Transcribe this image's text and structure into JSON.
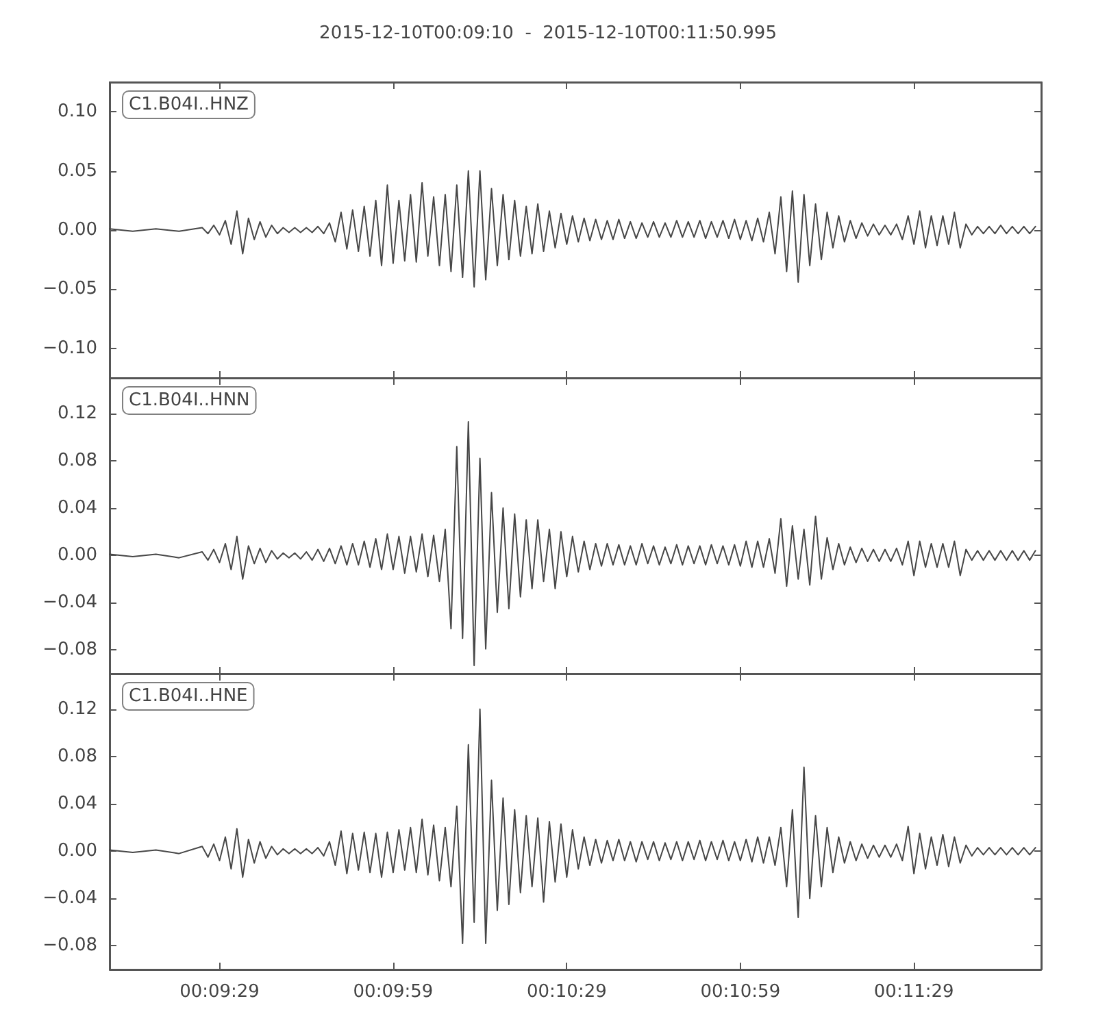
{
  "chart_data": [
    {
      "type": "line",
      "title": "2015-12-10T00:09:10  -  2015-12-10T00:11:50.995",
      "annotations": [
        "C1.B04I..HNZ"
      ],
      "color": "#474747",
      "tick_labels": "y",
      "xlim": [
        "2015-12-10T00:09:10",
        "2015-12-10T00:11:50.995"
      ],
      "xticks": [
        {
          "value": "2015-12-10T00:09:29",
          "label": null
        },
        {
          "value": "2015-12-10T00:09:59",
          "label": null
        },
        {
          "value": "2015-12-10T00:10:29",
          "label": null
        },
        {
          "value": "2015-12-10T00:10:59",
          "label": null
        },
        {
          "value": "2015-12-10T00:11:29",
          "label": null
        }
      ],
      "ylim": [
        -0.125,
        0.125
      ],
      "yticks": [
        {
          "value": -0.1,
          "label": "−0.10"
        },
        {
          "value": -0.05,
          "label": "−0.05"
        },
        {
          "value": 0,
          "label": "0.00"
        },
        0.05,
        {
          "value": 0.1,
          "label": "0.10"
        }
      ],
      "x": [
        "2015-12-10T00:09:10",
        "2015-12-10T00:09:14",
        "2015-12-10T00:09:18",
        "2015-12-10T00:09:22",
        "2015-12-10T00:09:26",
        "2015-12-10T00:09:27",
        "2015-12-10T00:09:28",
        "2015-12-10T00:09:29",
        "2015-12-10T00:09:30",
        "2015-12-10T00:09:31",
        "2015-12-10T00:09:32",
        "2015-12-10T00:09:33",
        "2015-12-10T00:09:34",
        "2015-12-10T00:09:35",
        "2015-12-10T00:09:36",
        "2015-12-10T00:09:37",
        "2015-12-10T00:09:38",
        "2015-12-10T00:09:39",
        "2015-12-10T00:09:40",
        "2015-12-10T00:09:41",
        "2015-12-10T00:09:42",
        "2015-12-10T00:09:43",
        "2015-12-10T00:09:44",
        "2015-12-10T00:09:45",
        "2015-12-10T00:09:46",
        "2015-12-10T00:09:47",
        "2015-12-10T00:09:48",
        "2015-12-10T00:09:49",
        "2015-12-10T00:09:50",
        "2015-12-10T00:09:51",
        "2015-12-10T00:09:52",
        "2015-12-10T00:09:53",
        "2015-12-10T00:09:54",
        "2015-12-10T00:09:55",
        "2015-12-10T00:09:56",
        "2015-12-10T00:09:57",
        "2015-12-10T00:09:58",
        "2015-12-10T00:09:59",
        "2015-12-10T00:10:00",
        "2015-12-10T00:10:01",
        "2015-12-10T00:10:02",
        "2015-12-10T00:10:03",
        "2015-12-10T00:10:04",
        "2015-12-10T00:10:05",
        "2015-12-10T00:10:06",
        "2015-12-10T00:10:07",
        "2015-12-10T00:10:08",
        "2015-12-10T00:10:09",
        "2015-12-10T00:10:10",
        "2015-12-10T00:10:11",
        "2015-12-10T00:10:12",
        "2015-12-10T00:10:13",
        "2015-12-10T00:10:14",
        "2015-12-10T00:10:15",
        "2015-12-10T00:10:16",
        "2015-12-10T00:10:17",
        "2015-12-10T00:10:18",
        "2015-12-10T00:10:19",
        "2015-12-10T00:10:20",
        "2015-12-10T00:10:21",
        "2015-12-10T00:10:22",
        "2015-12-10T00:10:23",
        "2015-12-10T00:10:24",
        "2015-12-10T00:10:25",
        "2015-12-10T00:10:26",
        "2015-12-10T00:10:27",
        "2015-12-10T00:10:28",
        "2015-12-10T00:10:29",
        "2015-12-10T00:10:30",
        "2015-12-10T00:10:31",
        "2015-12-10T00:10:32",
        "2015-12-10T00:10:33",
        "2015-12-10T00:10:34",
        "2015-12-10T00:10:35",
        "2015-12-10T00:10:36",
        "2015-12-10T00:10:37",
        "2015-12-10T00:10:38",
        "2015-12-10T00:10:39",
        "2015-12-10T00:10:40",
        "2015-12-10T00:10:41",
        "2015-12-10T00:10:42",
        "2015-12-10T00:10:43",
        "2015-12-10T00:10:44",
        "2015-12-10T00:10:45",
        "2015-12-10T00:10:46",
        "2015-12-10T00:10:47",
        "2015-12-10T00:10:48",
        "2015-12-10T00:10:49",
        "2015-12-10T00:10:50",
        "2015-12-10T00:10:51",
        "2015-12-10T00:10:52",
        "2015-12-10T00:10:53",
        "2015-12-10T00:10:54",
        "2015-12-10T00:10:55",
        "2015-12-10T00:10:56",
        "2015-12-10T00:10:57",
        "2015-12-10T00:10:58",
        "2015-12-10T00:10:59",
        "2015-12-10T00:11:00",
        "2015-12-10T00:11:01",
        "2015-12-10T00:11:02",
        "2015-12-10T00:11:03",
        "2015-12-10T00:11:04",
        "2015-12-10T00:11:05",
        "2015-12-10T00:11:06",
        "2015-12-10T00:11:07",
        "2015-12-10T00:11:08",
        "2015-12-10T00:11:09",
        "2015-12-10T00:11:10",
        "2015-12-10T00:11:11",
        "2015-12-10T00:11:12",
        "2015-12-10T00:11:13",
        "2015-12-10T00:11:14",
        "2015-12-10T00:11:15",
        "2015-12-10T00:11:16",
        "2015-12-10T00:11:17",
        "2015-12-10T00:11:18",
        "2015-12-10T00:11:19",
        "2015-12-10T00:11:20",
        "2015-12-10T00:11:21",
        "2015-12-10T00:11:22",
        "2015-12-10T00:11:23",
        "2015-12-10T00:11:24",
        "2015-12-10T00:11:25",
        "2015-12-10T00:11:26",
        "2015-12-10T00:11:27",
        "2015-12-10T00:11:28",
        "2015-12-10T00:11:29",
        "2015-12-10T00:11:30",
        "2015-12-10T00:11:31",
        "2015-12-10T00:11:32",
        "2015-12-10T00:11:33",
        "2015-12-10T00:11:34",
        "2015-12-10T00:11:35",
        "2015-12-10T00:11:36",
        "2015-12-10T00:11:37",
        "2015-12-10T00:11:38",
        "2015-12-10T00:11:39",
        "2015-12-10T00:11:40",
        "2015-12-10T00:11:41",
        "2015-12-10T00:11:42",
        "2015-12-10T00:11:43",
        "2015-12-10T00:11:44",
        "2015-12-10T00:11:45",
        "2015-12-10T00:11:46",
        "2015-12-10T00:11:47",
        "2015-12-10T00:11:48",
        "2015-12-10T00:11:49",
        "2015-12-10T00:11:50"
      ],
      "values": [
        0.001,
        -0.001,
        0.001,
        -0.001,
        0.002,
        -0.003,
        0.004,
        -0.004,
        0.008,
        -0.012,
        0.016,
        -0.02,
        0.01,
        -0.008,
        0.007,
        -0.006,
        0.004,
        -0.003,
        0.002,
        -0.002,
        0.002,
        -0.002,
        0.002,
        -0.002,
        0.003,
        -0.003,
        0.006,
        -0.01,
        0.015,
        -0.016,
        0.017,
        -0.018,
        0.02,
        -0.022,
        0.025,
        -0.03,
        0.038,
        -0.028,
        0.025,
        -0.026,
        0.03,
        -0.027,
        0.04,
        -0.022,
        0.028,
        -0.03,
        0.03,
        -0.035,
        0.038,
        -0.04,
        0.05,
        -0.048,
        0.05,
        -0.042,
        0.035,
        -0.03,
        0.03,
        -0.025,
        0.025,
        -0.022,
        0.02,
        -0.02,
        0.022,
        -0.018,
        0.016,
        -0.015,
        0.014,
        -0.012,
        0.012,
        -0.01,
        0.01,
        -0.009,
        0.009,
        -0.008,
        0.008,
        -0.008,
        0.009,
        -0.007,
        0.007,
        -0.007,
        0.006,
        -0.006,
        0.007,
        -0.006,
        0.006,
        -0.006,
        0.008,
        -0.006,
        0.007,
        -0.006,
        0.008,
        -0.007,
        0.007,
        -0.006,
        0.008,
        -0.007,
        0.009,
        -0.008,
        0.008,
        -0.009,
        0.01,
        -0.01,
        0.015,
        -0.02,
        0.028,
        -0.035,
        0.033,
        -0.044,
        0.03,
        -0.03,
        0.022,
        -0.025,
        0.015,
        -0.015,
        0.012,
        -0.01,
        0.008,
        -0.007,
        0.006,
        -0.005,
        0.005,
        -0.004,
        0.004,
        -0.004,
        0.005,
        -0.008,
        0.012,
        -0.012,
        0.016,
        -0.015,
        0.012,
        -0.013,
        0.012,
        -0.012,
        0.015,
        -0.015,
        0.005,
        -0.004,
        0.003,
        -0.003,
        0.003,
        -0.003,
        0.004,
        -0.003,
        0.003,
        -0.003,
        0.003,
        -0.003,
        0.003
      ]
    },
    {
      "type": "line",
      "annotations": [
        "C1.B04I..HNN"
      ],
      "color": "#474747",
      "tick_labels": "y",
      "xlim": [
        "2015-12-10T00:09:10",
        "2015-12-10T00:11:50.995"
      ],
      "xticks": [
        {
          "value": "2015-12-10T00:09:29",
          "label": null
        },
        {
          "value": "2015-12-10T00:09:59",
          "label": null
        },
        {
          "value": "2015-12-10T00:10:29",
          "label": null
        },
        {
          "value": "2015-12-10T00:10:59",
          "label": null
        },
        {
          "value": "2015-12-10T00:11:29",
          "label": null
        }
      ],
      "ylim": [
        -0.1,
        0.15
      ],
      "yticks": [
        {
          "value": -0.08,
          "label": "−0.08"
        },
        {
          "value": -0.04,
          "label": "−0.04"
        },
        {
          "value": 0,
          "label": "0.00"
        },
        0.04,
        0.08,
        0.12
      ],
      "x": [
        "2015-12-10T00:09:10",
        "2015-12-10T00:09:14",
        "2015-12-10T00:09:18",
        "2015-12-10T00:09:22",
        "2015-12-10T00:09:26",
        "2015-12-10T00:09:27",
        "2015-12-10T00:09:28",
        "2015-12-10T00:09:29",
        "2015-12-10T00:09:30",
        "2015-12-10T00:09:31",
        "2015-12-10T00:09:32",
        "2015-12-10T00:09:33",
        "2015-12-10T00:09:34",
        "2015-12-10T00:09:35",
        "2015-12-10T00:09:36",
        "2015-12-10T00:09:37",
        "2015-12-10T00:09:38",
        "2015-12-10T00:09:39",
        "2015-12-10T00:09:40",
        "2015-12-10T00:09:41",
        "2015-12-10T00:09:42",
        "2015-12-10T00:09:43",
        "2015-12-10T00:09:44",
        "2015-12-10T00:09:45",
        "2015-12-10T00:09:46",
        "2015-12-10T00:09:47",
        "2015-12-10T00:09:48",
        "2015-12-10T00:09:49",
        "2015-12-10T00:09:50",
        "2015-12-10T00:09:51",
        "2015-12-10T00:09:52",
        "2015-12-10T00:09:53",
        "2015-12-10T00:09:54",
        "2015-12-10T00:09:55",
        "2015-12-10T00:09:56",
        "2015-12-10T00:09:57",
        "2015-12-10T00:09:58",
        "2015-12-10T00:09:59",
        "2015-12-10T00:10:00",
        "2015-12-10T00:10:01",
        "2015-12-10T00:10:02",
        "2015-12-10T00:10:03",
        "2015-12-10T00:10:04",
        "2015-12-10T00:10:05",
        "2015-12-10T00:10:06",
        "2015-12-10T00:10:07",
        "2015-12-10T00:10:08",
        "2015-12-10T00:10:09",
        "2015-12-10T00:10:10",
        "2015-12-10T00:10:11",
        "2015-12-10T00:10:12",
        "2015-12-10T00:10:13",
        "2015-12-10T00:10:14",
        "2015-12-10T00:10:15",
        "2015-12-10T00:10:16",
        "2015-12-10T00:10:17",
        "2015-12-10T00:10:18",
        "2015-12-10T00:10:19",
        "2015-12-10T00:10:20",
        "2015-12-10T00:10:21",
        "2015-12-10T00:10:22",
        "2015-12-10T00:10:23",
        "2015-12-10T00:10:24",
        "2015-12-10T00:10:25",
        "2015-12-10T00:10:26",
        "2015-12-10T00:10:27",
        "2015-12-10T00:10:28",
        "2015-12-10T00:10:29",
        "2015-12-10T00:10:30",
        "2015-12-10T00:10:31",
        "2015-12-10T00:10:32",
        "2015-12-10T00:10:33",
        "2015-12-10T00:10:34",
        "2015-12-10T00:10:35",
        "2015-12-10T00:10:36",
        "2015-12-10T00:10:37",
        "2015-12-10T00:10:38",
        "2015-12-10T00:10:39",
        "2015-12-10T00:10:40",
        "2015-12-10T00:10:41",
        "2015-12-10T00:10:42",
        "2015-12-10T00:10:43",
        "2015-12-10T00:10:44",
        "2015-12-10T00:10:45",
        "2015-12-10T00:10:46",
        "2015-12-10T00:10:47",
        "2015-12-10T00:10:48",
        "2015-12-10T00:10:49",
        "2015-12-10T00:10:50",
        "2015-12-10T00:10:51",
        "2015-12-10T00:10:52",
        "2015-12-10T00:10:53",
        "2015-12-10T00:10:54",
        "2015-12-10T00:10:55",
        "2015-12-10T00:10:56",
        "2015-12-10T00:10:57",
        "2015-12-10T00:10:58",
        "2015-12-10T00:10:59",
        "2015-12-10T00:11:00",
        "2015-12-10T00:11:01",
        "2015-12-10T00:11:02",
        "2015-12-10T00:11:03",
        "2015-12-10T00:11:04",
        "2015-12-10T00:11:05",
        "2015-12-10T00:11:06",
        "2015-12-10T00:11:07",
        "2015-12-10T00:11:08",
        "2015-12-10T00:11:09",
        "2015-12-10T00:11:10",
        "2015-12-10T00:11:11",
        "2015-12-10T00:11:12",
        "2015-12-10T00:11:13",
        "2015-12-10T00:11:14",
        "2015-12-10T00:11:15",
        "2015-12-10T00:11:16",
        "2015-12-10T00:11:17",
        "2015-12-10T00:11:18",
        "2015-12-10T00:11:19",
        "2015-12-10T00:11:20",
        "2015-12-10T00:11:21",
        "2015-12-10T00:11:22",
        "2015-12-10T00:11:23",
        "2015-12-10T00:11:24",
        "2015-12-10T00:11:25",
        "2015-12-10T00:11:26",
        "2015-12-10T00:11:27",
        "2015-12-10T00:11:28",
        "2015-12-10T00:11:29",
        "2015-12-10T00:11:30",
        "2015-12-10T00:11:31",
        "2015-12-10T00:11:32",
        "2015-12-10T00:11:33",
        "2015-12-10T00:11:34",
        "2015-12-10T00:11:35",
        "2015-12-10T00:11:36",
        "2015-12-10T00:11:37",
        "2015-12-10T00:11:38",
        "2015-12-10T00:11:39",
        "2015-12-10T00:11:40",
        "2015-12-10T00:11:41",
        "2015-12-10T00:11:42",
        "2015-12-10T00:11:43",
        "2015-12-10T00:11:44",
        "2015-12-10T00:11:45",
        "2015-12-10T00:11:46",
        "2015-12-10T00:11:47",
        "2015-12-10T00:11:48",
        "2015-12-10T00:11:49",
        "2015-12-10T00:11:50"
      ],
      "values": [
        0.001,
        -0.001,
        0.001,
        -0.002,
        0.003,
        -0.004,
        0.005,
        -0.006,
        0.01,
        -0.012,
        0.016,
        -0.02,
        0.008,
        -0.007,
        0.006,
        -0.006,
        0.004,
        -0.003,
        0.002,
        -0.002,
        0.002,
        -0.003,
        0.003,
        -0.004,
        0.005,
        -0.005,
        0.006,
        -0.007,
        0.008,
        -0.008,
        0.01,
        -0.008,
        0.012,
        -0.01,
        0.014,
        -0.012,
        0.018,
        -0.012,
        0.016,
        -0.015,
        0.016,
        -0.014,
        0.018,
        -0.018,
        0.017,
        -0.022,
        0.022,
        -0.062,
        0.092,
        -0.07,
        0.113,
        -0.093,
        0.082,
        -0.079,
        0.053,
        -0.048,
        0.04,
        -0.045,
        0.035,
        -0.035,
        0.03,
        -0.028,
        0.03,
        -0.022,
        0.022,
        -0.028,
        0.02,
        -0.018,
        0.016,
        -0.014,
        0.012,
        -0.012,
        0.01,
        -0.009,
        0.01,
        -0.008,
        0.009,
        -0.008,
        0.008,
        -0.008,
        0.01,
        -0.007,
        0.008,
        -0.008,
        0.007,
        -0.007,
        0.009,
        -0.008,
        0.008,
        -0.007,
        0.008,
        -0.008,
        0.009,
        -0.007,
        0.008,
        -0.008,
        0.009,
        -0.009,
        0.012,
        -0.01,
        0.012,
        -0.01,
        0.014,
        -0.015,
        0.031,
        -0.026,
        0.025,
        -0.02,
        0.022,
        -0.025,
        0.033,
        -0.02,
        0.015,
        -0.012,
        0.01,
        -0.008,
        0.007,
        -0.006,
        0.006,
        -0.005,
        0.005,
        -0.005,
        0.005,
        -0.005,
        0.006,
        -0.008,
        0.012,
        -0.017,
        0.012,
        -0.01,
        0.01,
        -0.01,
        0.01,
        -0.01,
        0.012,
        -0.017,
        0.005,
        -0.004,
        0.004,
        -0.004,
        0.004,
        -0.004,
        0.004,
        -0.004,
        0.004,
        -0.004,
        0.004,
        -0.004,
        0.004
      ]
    },
    {
      "type": "line",
      "annotations": [
        "C1.B04I..HNE"
      ],
      "color": "#474747",
      "xlim": [
        "2015-12-10T00:09:10",
        "2015-12-10T00:11:50.995"
      ],
      "xticks": [
        {
          "value": "2015-12-10T00:09:29",
          "label": "00:09:29"
        },
        {
          "value": "2015-12-10T00:09:59",
          "label": "00:09:59"
        },
        {
          "value": "2015-12-10T00:10:29",
          "label": "00:10:29"
        },
        {
          "value": "2015-12-10T00:10:59",
          "label": "00:10:59"
        },
        {
          "value": "2015-12-10T00:11:29",
          "label": "00:11:29"
        }
      ],
      "ylim": [
        -0.1,
        0.15
      ],
      "yticks": [
        {
          "value": -0.08,
          "label": "−0.08"
        },
        {
          "value": -0.04,
          "label": "−0.04"
        },
        {
          "value": 0,
          "label": "0.00"
        },
        0.04,
        0.08,
        0.12
      ],
      "x": [
        "2015-12-10T00:09:10",
        "2015-12-10T00:09:14",
        "2015-12-10T00:09:18",
        "2015-12-10T00:09:22",
        "2015-12-10T00:09:26",
        "2015-12-10T00:09:27",
        "2015-12-10T00:09:28",
        "2015-12-10T00:09:29",
        "2015-12-10T00:09:30",
        "2015-12-10T00:09:31",
        "2015-12-10T00:09:32",
        "2015-12-10T00:09:33",
        "2015-12-10T00:09:34",
        "2015-12-10T00:09:35",
        "2015-12-10T00:09:36",
        "2015-12-10T00:09:37",
        "2015-12-10T00:09:38",
        "2015-12-10T00:09:39",
        "2015-12-10T00:09:40",
        "2015-12-10T00:09:41",
        "2015-12-10T00:09:42",
        "2015-12-10T00:09:43",
        "2015-12-10T00:09:44",
        "2015-12-10T00:09:45",
        "2015-12-10T00:09:46",
        "2015-12-10T00:09:47",
        "2015-12-10T00:09:48",
        "2015-12-10T00:09:49",
        "2015-12-10T00:09:50",
        "2015-12-10T00:09:51",
        "2015-12-10T00:09:52",
        "2015-12-10T00:09:53",
        "2015-12-10T00:09:54",
        "2015-12-10T00:09:55",
        "2015-12-10T00:09:56",
        "2015-12-10T00:09:57",
        "2015-12-10T00:09:58",
        "2015-12-10T00:09:59",
        "2015-12-10T00:10:00",
        "2015-12-10T00:10:01",
        "2015-12-10T00:10:02",
        "2015-12-10T00:10:03",
        "2015-12-10T00:10:04",
        "2015-12-10T00:10:05",
        "2015-12-10T00:10:06",
        "2015-12-10T00:10:07",
        "2015-12-10T00:10:08",
        "2015-12-10T00:10:09",
        "2015-12-10T00:10:10",
        "2015-12-10T00:10:11",
        "2015-12-10T00:10:12",
        "2015-12-10T00:10:13",
        "2015-12-10T00:10:14",
        "2015-12-10T00:10:15",
        "2015-12-10T00:10:16",
        "2015-12-10T00:10:17",
        "2015-12-10T00:10:18",
        "2015-12-10T00:10:19",
        "2015-12-10T00:10:20",
        "2015-12-10T00:10:21",
        "2015-12-10T00:10:22",
        "2015-12-10T00:10:23",
        "2015-12-10T00:10:24",
        "2015-12-10T00:10:25",
        "2015-12-10T00:10:26",
        "2015-12-10T00:10:27",
        "2015-12-10T00:10:28",
        "2015-12-10T00:10:29",
        "2015-12-10T00:10:30",
        "2015-12-10T00:10:31",
        "2015-12-10T00:10:32",
        "2015-12-10T00:10:33",
        "2015-12-10T00:10:34",
        "2015-12-10T00:10:35",
        "2015-12-10T00:10:36",
        "2015-12-10T00:10:37",
        "2015-12-10T00:10:38",
        "2015-12-10T00:10:39",
        "2015-12-10T00:10:40",
        "2015-12-10T00:10:41",
        "2015-12-10T00:10:42",
        "2015-12-10T00:10:43",
        "2015-12-10T00:10:44",
        "2015-12-10T00:10:45",
        "2015-12-10T00:10:46",
        "2015-12-10T00:10:47",
        "2015-12-10T00:10:48",
        "2015-12-10T00:10:49",
        "2015-12-10T00:10:50",
        "2015-12-10T00:10:51",
        "2015-12-10T00:10:52",
        "2015-12-10T00:10:53",
        "2015-12-10T00:10:54",
        "2015-12-10T00:10:55",
        "2015-12-10T00:10:56",
        "2015-12-10T00:10:57",
        "2015-12-10T00:10:58",
        "2015-12-10T00:10:59",
        "2015-12-10T00:11:00",
        "2015-12-10T00:11:01",
        "2015-12-10T00:11:02",
        "2015-12-10T00:11:03",
        "2015-12-10T00:11:04",
        "2015-12-10T00:11:05",
        "2015-12-10T00:11:06",
        "2015-12-10T00:11:07",
        "2015-12-10T00:11:08",
        "2015-12-10T00:11:09",
        "2015-12-10T00:11:10",
        "2015-12-10T00:11:11",
        "2015-12-10T00:11:12",
        "2015-12-10T00:11:13",
        "2015-12-10T00:11:14",
        "2015-12-10T00:11:15",
        "2015-12-10T00:11:16",
        "2015-12-10T00:11:17",
        "2015-12-10T00:11:18",
        "2015-12-10T00:11:19",
        "2015-12-10T00:11:20",
        "2015-12-10T00:11:21",
        "2015-12-10T00:11:22",
        "2015-12-10T00:11:23",
        "2015-12-10T00:11:24",
        "2015-12-10T00:11:25",
        "2015-12-10T00:11:26",
        "2015-12-10T00:11:27",
        "2015-12-10T00:11:28",
        "2015-12-10T00:11:29",
        "2015-12-10T00:11:30",
        "2015-12-10T00:11:31",
        "2015-12-10T00:11:32",
        "2015-12-10T00:11:33",
        "2015-12-10T00:11:34",
        "2015-12-10T00:11:35",
        "2015-12-10T00:11:36",
        "2015-12-10T00:11:37",
        "2015-12-10T00:11:38",
        "2015-12-10T00:11:39",
        "2015-12-10T00:11:40",
        "2015-12-10T00:11:41",
        "2015-12-10T00:11:42",
        "2015-12-10T00:11:43",
        "2015-12-10T00:11:44",
        "2015-12-10T00:11:45",
        "2015-12-10T00:11:46",
        "2015-12-10T00:11:47",
        "2015-12-10T00:11:48",
        "2015-12-10T00:11:49",
        "2015-12-10T00:11:50"
      ],
      "values": [
        0.001,
        -0.001,
        0.001,
        -0.002,
        0.004,
        -0.005,
        0.006,
        -0.008,
        0.012,
        -0.015,
        0.019,
        -0.022,
        0.01,
        -0.01,
        0.008,
        -0.006,
        0.004,
        -0.003,
        0.002,
        -0.002,
        0.002,
        -0.002,
        0.002,
        -0.002,
        0.003,
        -0.004,
        0.008,
        -0.012,
        0.017,
        -0.019,
        0.015,
        -0.016,
        0.016,
        -0.018,
        0.015,
        -0.022,
        0.016,
        -0.018,
        0.018,
        -0.016,
        0.02,
        -0.018,
        0.027,
        -0.02,
        0.022,
        -0.025,
        0.02,
        -0.03,
        0.038,
        -0.078,
        0.09,
        -0.06,
        0.12,
        -0.078,
        0.06,
        -0.05,
        0.045,
        -0.045,
        0.035,
        -0.035,
        0.03,
        -0.03,
        0.028,
        -0.043,
        0.025,
        -0.026,
        0.023,
        -0.022,
        0.018,
        -0.015,
        0.012,
        -0.012,
        0.01,
        -0.01,
        0.009,
        -0.008,
        0.01,
        -0.008,
        0.008,
        -0.009,
        0.008,
        -0.007,
        0.008,
        -0.008,
        0.007,
        -0.007,
        0.008,
        -0.008,
        0.008,
        -0.007,
        0.009,
        -0.008,
        0.008,
        -0.007,
        0.009,
        -0.008,
        0.008,
        -0.008,
        0.01,
        -0.009,
        0.012,
        -0.01,
        0.012,
        -0.012,
        0.02,
        -0.03,
        0.035,
        -0.056,
        0.071,
        -0.04,
        0.03,
        -0.03,
        0.02,
        -0.018,
        0.012,
        -0.01,
        0.008,
        -0.008,
        0.006,
        -0.006,
        0.005,
        -0.005,
        0.005,
        -0.005,
        0.006,
        -0.008,
        0.021,
        -0.019,
        0.015,
        -0.015,
        0.012,
        -0.012,
        0.014,
        -0.013,
        0.012,
        -0.01,
        0.005,
        -0.004,
        0.003,
        -0.003,
        0.003,
        -0.003,
        0.003,
        -0.003,
        0.003,
        -0.003,
        0.003,
        -0.003,
        0.003
      ]
    }
  ]
}
